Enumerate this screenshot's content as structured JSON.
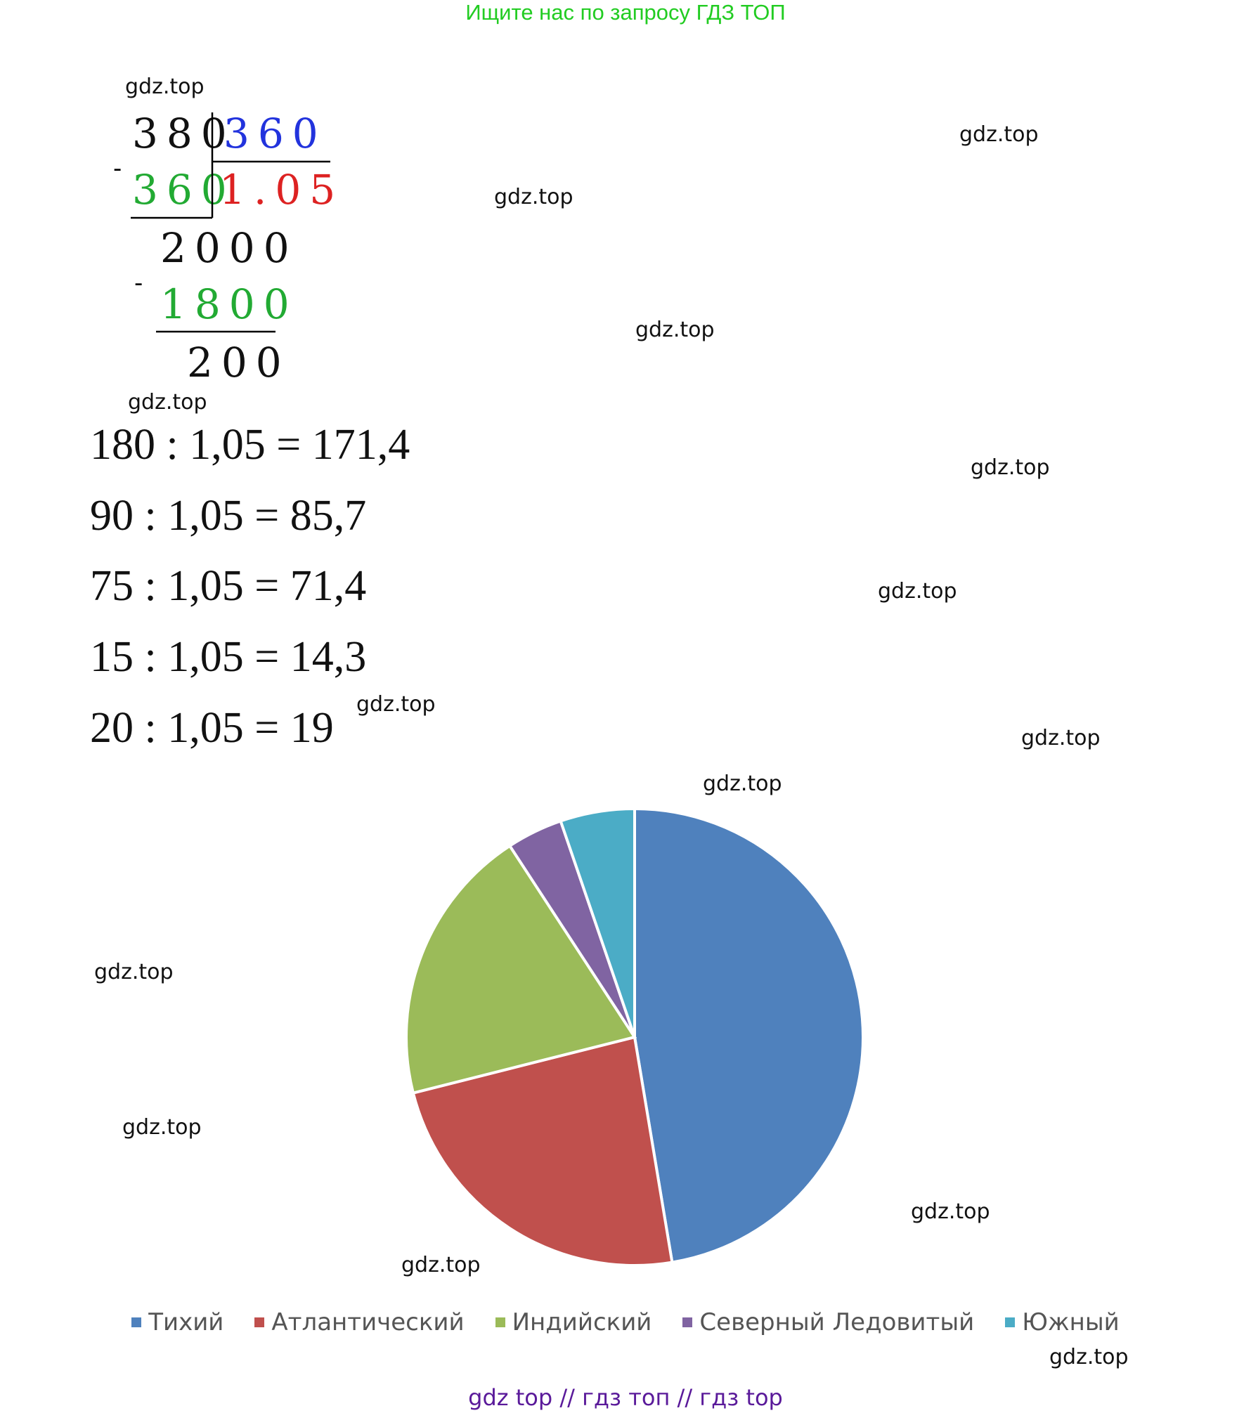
{
  "header": {
    "text": "Ищите нас по запросу ГДЗ ТОП"
  },
  "watermark": "gdz.top",
  "long_division": {
    "dividend": "380",
    "divisor": "360",
    "subtrahend1": "360",
    "quotient": "1.05",
    "remainder1": "2000",
    "subtrahend2": "1800",
    "remainder2": "200",
    "minus": "-"
  },
  "equations": [
    "180 : 1,05 = 171,4",
    "90 : 1,05 = 85,7",
    "75 : 1,05 = 71,4",
    "15 : 1,05 = 14,3",
    "20 : 1,05 = 19"
  ],
  "chart_data": {
    "type": "pie",
    "categories": [
      "Тихий",
      "Атлантический",
      "Индийский",
      "Северный Ледовитый",
      "Южный"
    ],
    "values": [
      171.4,
      85.7,
      71.4,
      14.3,
      19
    ],
    "colors": [
      "#4f81bd",
      "#c0504d",
      "#9bbb59",
      "#8064a2",
      "#4bacc6"
    ],
    "legend": "bottom",
    "start_angle_deg": 0,
    "direction": "clockwise"
  },
  "footer": {
    "text": "gdz top  //  гдз топ  //  гдз top"
  }
}
